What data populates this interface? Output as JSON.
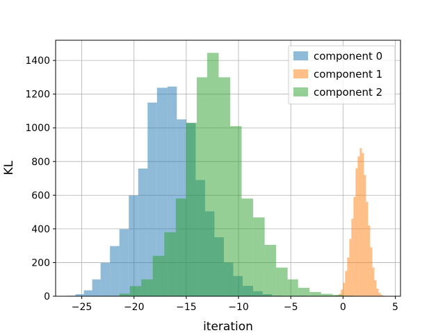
{
  "chart_data": {
    "type": "bar",
    "title": "",
    "xlabel": "iteration",
    "ylabel": "KL",
    "xlim": [
      -27.5,
      5.5
    ],
    "ylim": [
      0,
      1520
    ],
    "xticks": [
      -25,
      -20,
      -15,
      -10,
      -5,
      0,
      5
    ],
    "yticks": [
      0,
      200,
      400,
      600,
      800,
      1000,
      1200,
      1400
    ],
    "grid": true,
    "legend_position": "top-right",
    "series": [
      {
        "name": "component 0",
        "color": "#1f77b4",
        "opacity": 0.5,
        "bins": [
          [
            -26.4,
            -25.6,
            3
          ],
          [
            -25.6,
            -24.8,
            12
          ],
          [
            -24.8,
            -24.0,
            35
          ],
          [
            -24.0,
            -23.2,
            100
          ],
          [
            -23.2,
            -22.3,
            198
          ],
          [
            -22.3,
            -21.4,
            298
          ],
          [
            -21.4,
            -20.5,
            398
          ],
          [
            -20.5,
            -19.6,
            598
          ],
          [
            -19.6,
            -18.7,
            758
          ],
          [
            -18.7,
            -17.8,
            1150
          ],
          [
            -17.8,
            -16.8,
            1238
          ],
          [
            -16.8,
            -15.9,
            1245
          ],
          [
            -15.9,
            -15.0,
            1050
          ],
          [
            -15.0,
            -14.1,
            1028
          ],
          [
            -14.1,
            -13.2,
            690
          ],
          [
            -13.2,
            -12.3,
            504
          ],
          [
            -12.3,
            -11.4,
            350
          ],
          [
            -11.4,
            -10.5,
            200
          ],
          [
            -10.5,
            -9.6,
            120
          ],
          [
            -9.6,
            -8.6,
            62
          ],
          [
            -8.6,
            -7.7,
            30
          ],
          [
            -7.7,
            -6.8,
            12
          ],
          [
            -6.8,
            -5.9,
            3
          ]
        ]
      },
      {
        "name": "component 1",
        "color": "#ff7f0e",
        "opacity": 0.5,
        "bins": [
          [
            -0.6,
            -0.4,
            5
          ],
          [
            -0.4,
            -0.2,
            15
          ],
          [
            -0.2,
            0.0,
            40
          ],
          [
            0.0,
            0.2,
            80
          ],
          [
            0.2,
            0.4,
            150
          ],
          [
            0.4,
            0.6,
            230
          ],
          [
            0.6,
            0.8,
            340
          ],
          [
            0.8,
            1.0,
            460
          ],
          [
            1.0,
            1.2,
            590
          ],
          [
            1.2,
            1.4,
            760
          ],
          [
            1.4,
            1.6,
            830
          ],
          [
            1.6,
            1.8,
            880
          ],
          [
            1.8,
            2.0,
            850
          ],
          [
            2.0,
            2.2,
            720
          ],
          [
            2.2,
            2.4,
            560
          ],
          [
            2.4,
            2.6,
            420
          ],
          [
            2.6,
            2.8,
            290
          ],
          [
            2.8,
            3.0,
            170
          ],
          [
            3.0,
            3.2,
            95
          ],
          [
            3.2,
            3.4,
            45
          ],
          [
            3.4,
            3.6,
            20
          ],
          [
            3.6,
            3.8,
            8
          ],
          [
            3.8,
            4.0,
            3
          ]
        ]
      },
      {
        "name": "component 2",
        "color": "#2ca02c",
        "opacity": 0.5,
        "bins": [
          [
            -21.4,
            -20.4,
            15
          ],
          [
            -20.4,
            -19.3,
            60
          ],
          [
            -19.3,
            -18.2,
            100
          ],
          [
            -18.2,
            -17.1,
            240
          ],
          [
            -17.1,
            -16.0,
            380
          ],
          [
            -16.0,
            -15.0,
            580
          ],
          [
            -15.0,
            -14.0,
            1030
          ],
          [
            -14.0,
            -13.0,
            1300
          ],
          [
            -13.0,
            -11.9,
            1445
          ],
          [
            -11.9,
            -10.8,
            1300
          ],
          [
            -10.8,
            -9.7,
            1010
          ],
          [
            -9.7,
            -8.6,
            580
          ],
          [
            -8.6,
            -7.5,
            468
          ],
          [
            -7.5,
            -6.4,
            305
          ],
          [
            -6.4,
            -5.3,
            170
          ],
          [
            -5.3,
            -4.3,
            100
          ],
          [
            -4.3,
            -3.2,
            50
          ],
          [
            -3.2,
            -2.1,
            25
          ],
          [
            -2.1,
            -1.0,
            14
          ],
          [
            -1.0,
            0.0,
            8
          ],
          [
            0.0,
            1.1,
            3
          ]
        ]
      }
    ]
  }
}
